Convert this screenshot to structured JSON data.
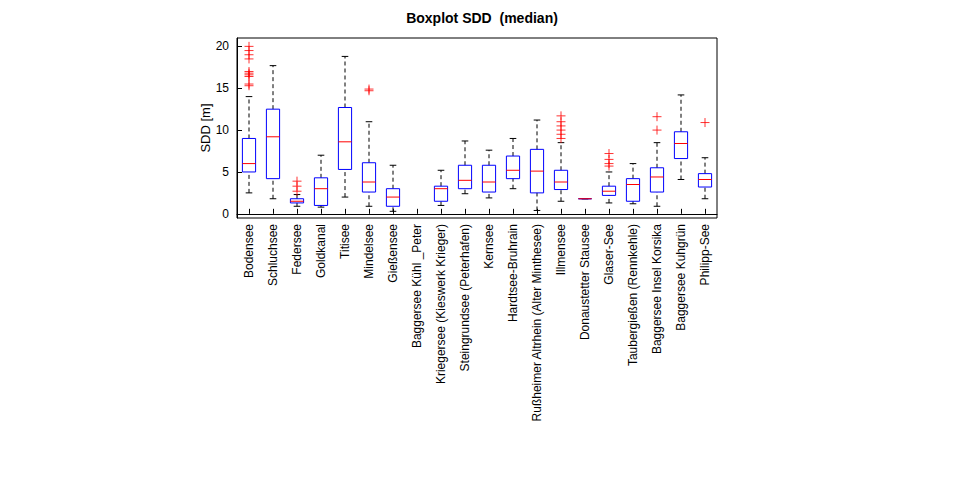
{
  "chart_data": {
    "type": "boxplot",
    "title": "Boxplot SDD  (median)",
    "y_label": "SDD [m]",
    "categories": [
      "Bodensee",
      "Schluchsee",
      "Federsee",
      "Goldkanal",
      "Titisee",
      "Mindelsee",
      "Gießensee",
      "Baggersee Kühl _Peter",
      "Kriegersee (Kieswerk Krieger)",
      "Steingrundsee (Peterhafen)",
      "Kernsee",
      "Hardtsee-Bruhrain",
      "Rußheimer Altrhein (Alter Minthesee)",
      "Illmensee",
      "Donaustetter Stausee",
      "Glaser-See",
      "Taubergießen (Rennkehle)",
      "Baggersee Insel Korsika",
      "Baggersee Kuhgrün",
      "Philipp-See"
    ],
    "ylim": [
      -0.5,
      21
    ],
    "yticks": [
      0,
      5,
      10,
      15,
      20
    ],
    "grid": false,
    "series": [
      {
        "type": "boxplot",
        "color": "#0000ff",
        "line_style": "dashed",
        "values": [
          [
            2.5,
            5,
            6,
            9,
            14
          ],
          [
            1.8,
            4.2,
            9.2,
            12.5,
            17.7
          ],
          [
            0.9,
            1.3,
            1.5,
            1.8,
            2.3
          ],
          [
            0.8,
            1,
            3,
            4.3,
            7
          ],
          [
            2,
            5.3,
            8.6,
            12.7,
            18.8
          ],
          [
            0.9,
            2.6,
            3.8,
            6.1,
            11
          ],
          [
            0.3,
            0.9,
            2,
            3,
            5.8
          ],
          null,
          [
            1,
            1.5,
            3,
            3.3,
            5.2
          ],
          [
            2.4,
            3,
            4,
            5.8,
            8.7
          ],
          [
            1.9,
            2.6,
            3.8,
            5.8,
            7.6
          ],
          [
            3,
            4.2,
            5.2,
            6.9,
            9
          ],
          [
            0.4,
            2.5,
            5.1,
            7.7,
            11.2
          ],
          [
            1.5,
            2.9,
            3.8,
            5.2,
            8.5
          ],
          [
            1.8,
            1.8,
            1.8,
            1.8,
            1.8
          ],
          [
            1.3,
            2.2,
            2.7,
            3.3,
            5
          ],
          [
            1.2,
            1.5,
            3.5,
            4.2,
            6
          ],
          [
            0.9,
            2.6,
            4.4,
            5.5,
            8.5
          ],
          [
            4.1,
            6.6,
            8.4,
            9.8,
            14.2
          ],
          [
            1.8,
            3.2,
            4.1,
            4.8,
            6.7
          ]
        ]
      },
      {
        "type": "scatter",
        "color": "#ff0000",
        "marker": "+",
        "values": [
          [
            15.3,
            15.5,
            16.4,
            16.6,
            16.8,
            17,
            18.5,
            19,
            19.5,
            20
          ],
          [],
          [
            2.7,
            3.3,
            3.9
          ],
          [],
          [],
          [
            14.7,
            14.9
          ],
          [],
          [],
          [],
          [],
          [],
          [],
          [],
          [
            9,
            9.5,
            10,
            10.5,
            11,
            11.7
          ],
          [],
          [
            5.7,
            6,
            6.5,
            7.2
          ],
          [],
          [
            10,
            11.6
          ],
          [],
          [
            10.9
          ]
        ]
      }
    ]
  }
}
